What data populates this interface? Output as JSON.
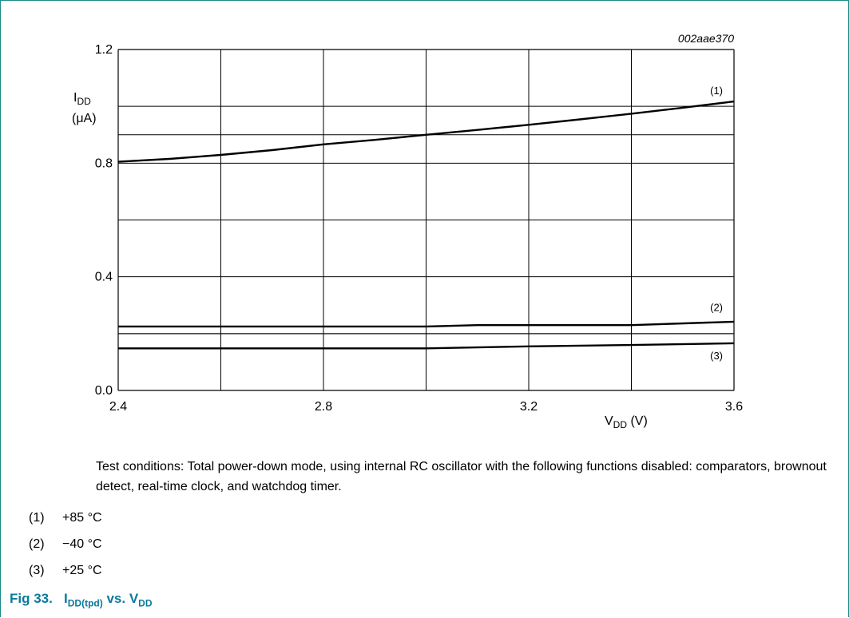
{
  "figure_id": "002aae370",
  "chart_data": {
    "type": "line",
    "x_label_main": "V",
    "x_label_sub": "DD",
    "x_label_unit": " (V)",
    "y_label_main": "I",
    "y_label_sub": "DD",
    "y_label_unit": "(μA)",
    "xlim": [
      2.4,
      3.6
    ],
    "ylim": [
      0.0,
      1.2
    ],
    "x_ticks": [
      "2.4",
      "2.8",
      "3.2",
      "3.6"
    ],
    "y_ticks": [
      "0.0",
      "0.4",
      "0.8",
      "1.2"
    ],
    "grid": true,
    "series": [
      {
        "name": "(1)",
        "x": [
          2.4,
          2.5,
          2.6,
          2.7,
          2.8,
          2.9,
          3.0,
          3.1,
          3.2,
          3.3,
          3.4,
          3.5,
          3.6
        ],
        "y": [
          0.805,
          0.815,
          0.829,
          0.846,
          0.866,
          0.882,
          0.9,
          0.917,
          0.935,
          0.954,
          0.974,
          0.995,
          1.017
        ]
      },
      {
        "name": "(2)",
        "x": [
          2.4,
          2.8,
          3.0,
          3.1,
          3.2,
          3.4,
          3.6
        ],
        "y": [
          0.225,
          0.225,
          0.225,
          0.23,
          0.23,
          0.23,
          0.242
        ]
      },
      {
        "name": "(3)",
        "x": [
          2.4,
          2.8,
          3.0,
          3.2,
          3.4,
          3.6
        ],
        "y": [
          0.148,
          0.148,
          0.148,
          0.155,
          0.16,
          0.166
        ]
      }
    ]
  },
  "conditions_text": "Test conditions: Total power-down mode, using internal RC oscillator with the following functions disabled: comparators, brownout detect, real-time clock, and watchdog timer.",
  "legend": [
    {
      "num": "(1)",
      "text": "+85 °C"
    },
    {
      "num": "(2)",
      "text": "−40 °C"
    },
    {
      "num": "(3)",
      "text": "+25 °C"
    }
  ],
  "caption": {
    "prefix": "Fig 33.",
    "i": "I",
    "i_sub": "DD(tpd)",
    "vs": " vs. V",
    "v_sub": "DD"
  }
}
